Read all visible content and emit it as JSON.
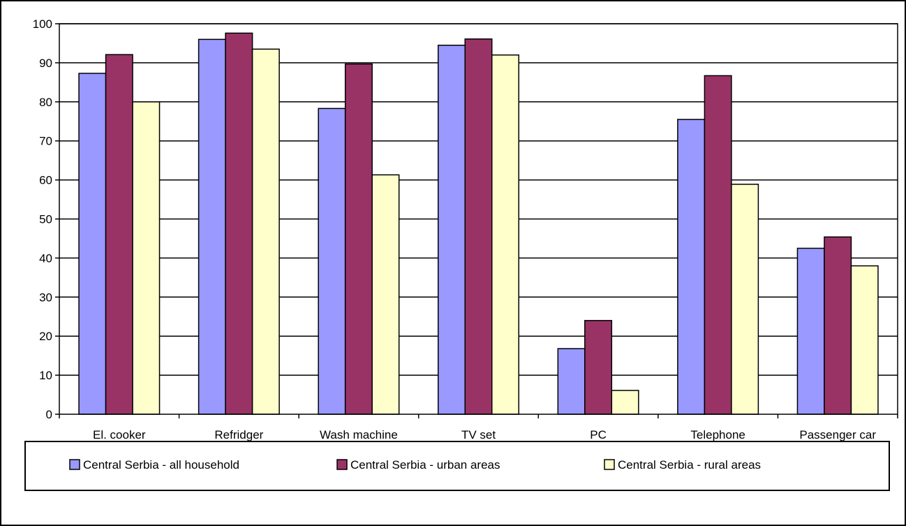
{
  "chart_data": {
    "type": "bar",
    "title": "",
    "xlabel": "",
    "ylabel": "",
    "ylim": [
      0,
      100
    ],
    "yticks": [
      0,
      10,
      20,
      30,
      40,
      50,
      60,
      70,
      80,
      90,
      100
    ],
    "grid": true,
    "legend_position": "bottom",
    "categories": [
      "El. cooker",
      "Refridger",
      "Wash machine",
      "TV set",
      "PC",
      "Telephone",
      "Passenger car"
    ],
    "series": [
      {
        "name": "Central Serbia - all household",
        "color": "#9999ff",
        "values": [
          87.3,
          96.0,
          78.3,
          94.5,
          16.8,
          75.5,
          42.5
        ]
      },
      {
        "name": "Central Serbia - urban areas",
        "color": "#993366",
        "values": [
          92.1,
          97.6,
          89.7,
          96.1,
          24.0,
          86.7,
          45.4
        ]
      },
      {
        "name": "Central Serbia - rural areas",
        "color": "#ffffcc",
        "values": [
          80.0,
          93.5,
          61.3,
          92.0,
          6.1,
          58.9,
          38.0
        ]
      }
    ]
  }
}
